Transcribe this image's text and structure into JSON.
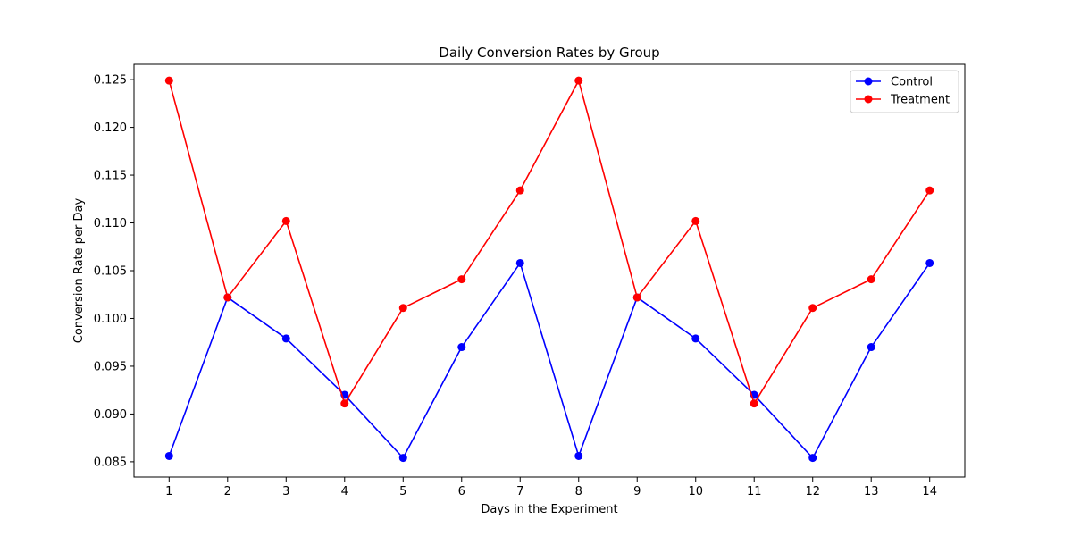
{
  "chart_data": {
    "type": "line",
    "title": "Daily Conversion Rates by Group",
    "xlabel": "Days in the Experiment",
    "ylabel": "Conversion Rate per Day",
    "x": [
      1,
      2,
      3,
      4,
      5,
      6,
      7,
      8,
      9,
      10,
      11,
      12,
      13,
      14
    ],
    "x_ticks": [
      "1",
      "2",
      "3",
      "4",
      "5",
      "6",
      "7",
      "8",
      "9",
      "10",
      "11",
      "12",
      "13",
      "14"
    ],
    "xlim": [
      0.4,
      14.6
    ],
    "ylim": [
      0.0834,
      0.1266
    ],
    "y_ticks": [
      "0.085",
      "0.090",
      "0.095",
      "0.100",
      "0.105",
      "0.110",
      "0.115",
      "0.120",
      "0.125"
    ],
    "grid": false,
    "legend_position": "top-right",
    "series": [
      {
        "name": "Control",
        "color": "#0000ff",
        "marker": "circle",
        "values": [
          0.0856,
          0.1022,
          0.0979,
          0.092,
          0.0854,
          0.097,
          0.1058,
          0.0856,
          0.1022,
          0.0979,
          0.092,
          0.0854,
          0.097,
          0.1058
        ]
      },
      {
        "name": "Treatment",
        "color": "#ff0000",
        "marker": "circle",
        "values": [
          0.1249,
          0.1022,
          0.1102,
          0.0911,
          0.1011,
          0.1041,
          0.1134,
          0.1249,
          0.1022,
          0.1102,
          0.0911,
          0.1011,
          0.1041,
          0.1134
        ]
      }
    ]
  }
}
